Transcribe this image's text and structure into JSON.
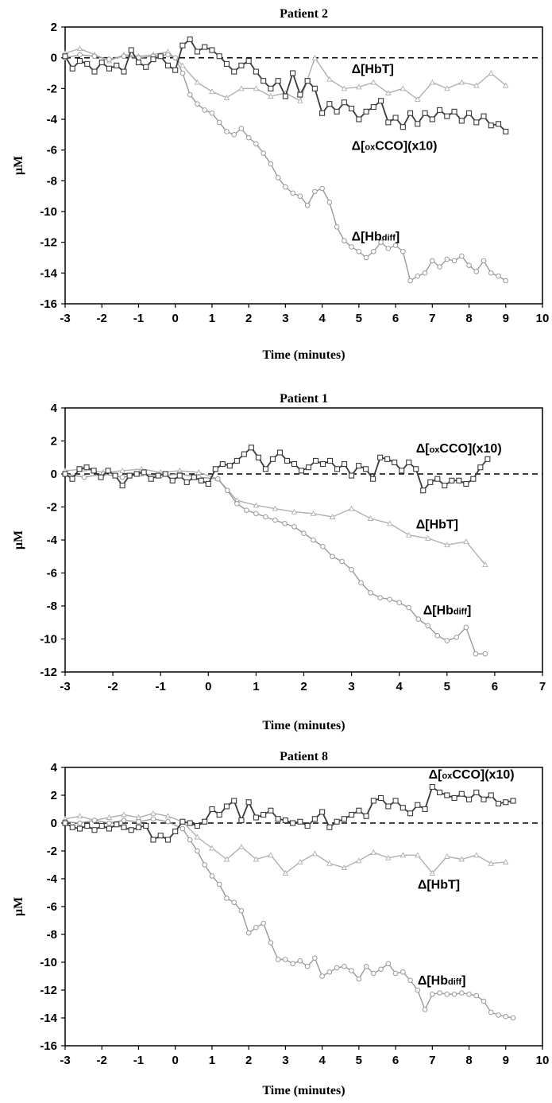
{
  "chart_data": [
    {
      "type": "line",
      "title": "Patient 2",
      "xlabel": "Time (minutes)",
      "ylabel": "µM",
      "xlim": [
        -3,
        10
      ],
      "ylim": [
        -16,
        2
      ],
      "xticks": [
        "-3",
        "-2",
        "-1",
        "0",
        "1",
        "2",
        "3",
        "4",
        "5",
        "6",
        "7",
        "8",
        "9",
        "10"
      ],
      "yticks": [
        "2",
        "0",
        "-2",
        "-4",
        "-6",
        "-8",
        "-10",
        "-12",
        "-14",
        "-16"
      ],
      "baseline": 0,
      "series": [
        {
          "name": "Δ[oxCCO](x10)",
          "color": "#3a3a3a",
          "marker": "square",
          "x": [
            -3,
            -2.8,
            -2.6,
            -2.4,
            -2.2,
            -2,
            -1.8,
            -1.6,
            -1.4,
            -1.2,
            -1,
            -0.8,
            -0.6,
            -0.4,
            -0.2,
            0,
            0.2,
            0.4,
            0.6,
            0.8,
            1,
            1.2,
            1.4,
            1.6,
            1.8,
            2,
            2.2,
            2.4,
            2.6,
            2.8,
            3,
            3.2,
            3.4,
            3.6,
            3.8,
            4,
            4.2,
            4.4,
            4.6,
            4.8,
            5,
            5.2,
            5.4,
            5.6,
            5.8,
            6,
            6.2,
            6.4,
            6.6,
            6.8,
            7,
            7.2,
            7.4,
            7.6,
            7.8,
            8,
            8.2,
            8.4,
            8.6,
            8.8,
            9
          ],
          "y": [
            0.1,
            -0.7,
            -0.2,
            -0.4,
            -0.9,
            -0.3,
            -0.7,
            -0.5,
            -0.9,
            0.5,
            -0.3,
            -0.6,
            -0.1,
            0.1,
            -0.5,
            -0.8,
            0.8,
            1.2,
            0.4,
            0.7,
            0.5,
            0.1,
            -0.4,
            -0.9,
            -0.5,
            -0.2,
            -0.9,
            -1.5,
            -2.0,
            -1.5,
            -2.5,
            -1.0,
            -2.4,
            -1.5,
            -2.0,
            -3.6,
            -3.0,
            -3.5,
            -2.9,
            -3.3,
            -4.0,
            -3.5,
            -3.2,
            -2.8,
            -4.2,
            -3.9,
            -4.5,
            -3.6,
            -4.3,
            -3.6,
            -4.0,
            -3.4,
            -3.8,
            -3.5,
            -4.1,
            -3.6,
            -4.2,
            -3.8,
            -4.4,
            -4.3,
            -4.8
          ]
        },
        {
          "name": "Δ[HbT]",
          "color": "#b0b0b0",
          "marker": "triangle",
          "x": [
            -3,
            -2.6,
            -2.2,
            -1.8,
            -1.4,
            -1,
            -0.6,
            -0.2,
            0.2,
            0.6,
            1,
            1.4,
            1.8,
            2.2,
            2.6,
            3,
            3.4,
            3.8,
            4.2,
            4.6,
            5,
            5.4,
            5.8,
            6.2,
            6.6,
            7,
            7.4,
            7.8,
            8.2,
            8.6,
            9
          ],
          "y": [
            0.3,
            0.6,
            0.2,
            -0.2,
            0.2,
            0.1,
            0.2,
            0.4,
            -0.5,
            -1.6,
            -2.2,
            -2.6,
            -2.0,
            -2.0,
            -2.5,
            -2.3,
            -2.8,
            0,
            -1.4,
            -2.0,
            -1.9,
            -1.6,
            -2.3,
            -2.0,
            -2.7,
            -1.6,
            -2.0,
            -1.6,
            -1.8,
            -1.0,
            -1.8
          ]
        },
        {
          "name": "Δ[Hbdiff]",
          "color": "#9a9a9a",
          "marker": "circle",
          "x": [
            -3,
            -2.6,
            -2.2,
            -1.8,
            -1.4,
            -1,
            -0.6,
            -0.2,
            0,
            0.2,
            0.4,
            0.6,
            0.8,
            1,
            1.2,
            1.4,
            1.6,
            1.8,
            2,
            2.2,
            2.4,
            2.6,
            2.8,
            3,
            3.2,
            3.4,
            3.6,
            3.8,
            4,
            4.2,
            4.4,
            4.6,
            4.8,
            5,
            5.2,
            5.4,
            5.6,
            5.8,
            6,
            6.2,
            6.4,
            6.6,
            6.8,
            7,
            7.2,
            7.4,
            7.6,
            7.8,
            8,
            8.2,
            8.4,
            8.6,
            8.8,
            9
          ],
          "y": [
            0,
            0.2,
            0.1,
            -0.1,
            0.1,
            0,
            0.1,
            0.2,
            0,
            -1.0,
            -2.4,
            -3.0,
            -3.4,
            -3.6,
            -4.2,
            -4.8,
            -5.0,
            -4.6,
            -5.2,
            -5.6,
            -6.2,
            -6.9,
            -7.8,
            -8.4,
            -8.8,
            -9.0,
            -9.6,
            -8.7,
            -8.5,
            -9.4,
            -11.0,
            -11.9,
            -12.3,
            -12.6,
            -13.0,
            -12.6,
            -12.0,
            -12.4,
            -12.2,
            -12.6,
            -14.5,
            -14.2,
            -14.0,
            -13.2,
            -13.6,
            -13.1,
            -13.2,
            -12.9,
            -13.5,
            -13.9,
            -13.2,
            -14.0,
            -14.2,
            -14.5
          ]
        }
      ],
      "annotations": [
        {
          "main": "Δ[HbT]",
          "sub": "",
          "tail": "",
          "at": [
            4.8,
            -1.0
          ]
        },
        {
          "main": "Δ[",
          "sub": "ox",
          "tail": "CCO](x10)",
          "at": [
            4.8,
            -6.0
          ]
        },
        {
          "main": "Δ[Hb",
          "sub": "diff",
          "tail": "]",
          "at": [
            4.8,
            -11.9
          ]
        }
      ]
    },
    {
      "type": "line",
      "title": "Patient 1",
      "xlabel": "Time (minutes)",
      "ylabel": "µM",
      "xlim": [
        -3,
        7
      ],
      "ylim": [
        -12,
        4
      ],
      "xticks": [
        "-3",
        "-2",
        "-1",
        "0",
        "1",
        "2",
        "3",
        "4",
        "5",
        "6",
        "7"
      ],
      "yticks": [
        "4",
        "2",
        "0",
        "-2",
        "-4",
        "-6",
        "-8",
        "-10",
        "-12"
      ],
      "baseline": 0,
      "series": [
        {
          "name": "Δ[oxCCO](x10)",
          "color": "#3a3a3a",
          "marker": "square",
          "x": [
            -3,
            -2.85,
            -2.7,
            -2.55,
            -2.4,
            -2.25,
            -2.1,
            -1.95,
            -1.8,
            -1.65,
            -1.5,
            -1.35,
            -1.2,
            -1.05,
            -0.9,
            -0.75,
            -0.6,
            -0.45,
            -0.3,
            -0.15,
            0,
            0.15,
            0.3,
            0.45,
            0.6,
            0.75,
            0.9,
            1.05,
            1.2,
            1.35,
            1.5,
            1.65,
            1.8,
            1.95,
            2.1,
            2.25,
            2.4,
            2.55,
            2.7,
            2.85,
            3,
            3.15,
            3.3,
            3.45,
            3.6,
            3.75,
            3.9,
            4.05,
            4.2,
            4.35,
            4.5,
            4.65,
            4.8,
            4.95,
            5.1,
            5.25,
            5.4,
            5.55,
            5.7,
            5.85
          ],
          "y": [
            0,
            -0.3,
            0.3,
            0.4,
            0.2,
            -0.2,
            0.2,
            -0.1,
            -0.7,
            -0.1,
            0.0,
            0.1,
            -0.3,
            -0.1,
            0.0,
            -0.4,
            -0.1,
            -0.5,
            -0.2,
            -0.4,
            -0.6,
            0.3,
            0.6,
            0.5,
            0.8,
            1.2,
            1.6,
            1.0,
            0.3,
            0.9,
            1.3,
            0.8,
            0.6,
            0.2,
            0.4,
            0.8,
            0.6,
            0.8,
            0.3,
            0.6,
            -0.1,
            0.5,
            0.3,
            -0.3,
            1.0,
            0.9,
            0.7,
            0.2,
            0.7,
            0.3,
            -1.0,
            -0.5,
            -0.3,
            -0.7,
            -0.4,
            -0.4,
            -0.6,
            -0.3,
            0.4,
            0.9
          ]
        },
        {
          "name": "Δ[HbT]",
          "color": "#b0b0b0",
          "marker": "triangle",
          "x": [
            -3,
            -2.6,
            -2.2,
            -1.8,
            -1.4,
            -1,
            -0.6,
            -0.2,
            0.2,
            0.6,
            1,
            1.4,
            1.8,
            2.2,
            2.6,
            3,
            3.4,
            3.8,
            4.2,
            4.6,
            5,
            5.4,
            5.8
          ],
          "y": [
            0.2,
            0.3,
            0.1,
            0.2,
            0.3,
            0.1,
            0.2,
            0.1,
            -0.3,
            -1.6,
            -1.9,
            -2.1,
            -2.3,
            -2.4,
            -2.6,
            -2.1,
            -2.7,
            -3.0,
            -3.7,
            -3.9,
            -4.3,
            -4.1,
            -5.5
          ]
        },
        {
          "name": "Δ[Hbdiff]",
          "color": "#9a9a9a",
          "marker": "circle",
          "x": [
            -3,
            -2.6,
            -2.2,
            -1.8,
            -1.4,
            -1,
            -0.6,
            -0.2,
            0.2,
            0.4,
            0.6,
            0.8,
            1,
            1.2,
            1.4,
            1.6,
            1.8,
            2,
            2.2,
            2.4,
            2.6,
            2.8,
            3,
            3.2,
            3.4,
            3.6,
            3.8,
            4,
            4.2,
            4.4,
            4.6,
            4.8,
            5,
            5.2,
            5.4,
            5.6,
            5.8
          ],
          "y": [
            0,
            -0.2,
            0,
            -0.2,
            0,
            -0.1,
            0,
            -0.2,
            -0.3,
            -1.0,
            -1.8,
            -2.2,
            -2.4,
            -2.6,
            -2.8,
            -3.0,
            -3.2,
            -3.6,
            -4.0,
            -4.4,
            -5.0,
            -5.3,
            -5.8,
            -6.6,
            -7.2,
            -7.5,
            -7.6,
            -7.8,
            -8.1,
            -8.8,
            -9.2,
            -9.8,
            -10.1,
            -9.9,
            -9.3,
            -10.9,
            -10.9
          ]
        }
      ],
      "annotations": [
        {
          "main": "Δ[",
          "sub": "ox",
          "tail": "CCO](x10)",
          "at": [
            4.35,
            1.3
          ]
        },
        {
          "main": "Δ[HbT]",
          "sub": "",
          "tail": "",
          "at": [
            4.35,
            -3.3
          ]
        },
        {
          "main": "Δ[Hb",
          "sub": "diff",
          "tail": "]",
          "at": [
            4.5,
            -8.5
          ]
        }
      ]
    },
    {
      "type": "line",
      "title": "Patient 8",
      "xlabel": "Time (minutes)",
      "ylabel": "µM",
      "xlim": [
        -3,
        10
      ],
      "ylim": [
        -16,
        4
      ],
      "xticks": [
        "-3",
        "-2",
        "-1",
        "0",
        "1",
        "2",
        "3",
        "4",
        "5",
        "6",
        "7",
        "8",
        "9",
        "10"
      ],
      "yticks": [
        "4",
        "2",
        "0",
        "-2",
        "-4",
        "-6",
        "-8",
        "-10",
        "-12",
        "-14",
        "-16"
      ],
      "baseline": 0,
      "series": [
        {
          "name": "Δ[oxCCO](x10)",
          "color": "#3a3a3a",
          "marker": "square",
          "x": [
            -3,
            -2.8,
            -2.6,
            -2.4,
            -2.2,
            -2,
            -1.8,
            -1.6,
            -1.4,
            -1.2,
            -1,
            -0.8,
            -0.6,
            -0.4,
            -0.2,
            0,
            0.2,
            0.4,
            0.6,
            0.8,
            1,
            1.2,
            1.4,
            1.6,
            1.8,
            2,
            2.2,
            2.4,
            2.6,
            2.8,
            3,
            3.2,
            3.4,
            3.6,
            3.8,
            4,
            4.2,
            4.4,
            4.6,
            4.8,
            5,
            5.2,
            5.4,
            5.6,
            5.8,
            6,
            6.2,
            6.4,
            6.6,
            6.8,
            7,
            7.2,
            7.4,
            7.6,
            7.8,
            8,
            8.2,
            8.4,
            8.6,
            8.8,
            9,
            9.2
          ],
          "y": [
            0,
            -0.3,
            -0.4,
            -0.2,
            -0.5,
            -0.2,
            -0.4,
            -0.1,
            -0.3,
            -0.5,
            -0.3,
            -0.2,
            -1.2,
            -0.9,
            -1.2,
            -0.6,
            0.1,
            0.0,
            -0.2,
            0.1,
            1.0,
            0.6,
            1.2,
            1.6,
            0.2,
            1.5,
            0.4,
            0.6,
            0.9,
            0.3,
            0.2,
            0.0,
            0.1,
            -0.2,
            0.3,
            0.8,
            -0.3,
            0.1,
            0.3,
            0.6,
            0.9,
            0.5,
            1.6,
            1.8,
            1.2,
            1.6,
            1.1,
            0.7,
            1.3,
            1.0,
            2.6,
            2.2,
            2.0,
            1.8,
            2.1,
            1.7,
            2.2,
            1.7,
            2.0,
            1.4,
            1.5,
            1.6
          ]
        },
        {
          "name": "Δ[HbT]",
          "color": "#b0b0b0",
          "marker": "triangle",
          "x": [
            -3,
            -2.6,
            -2.2,
            -1.8,
            -1.4,
            -1,
            -0.6,
            -0.2,
            0.2,
            0.6,
            1,
            1.4,
            1.8,
            2.2,
            2.6,
            3,
            3.4,
            3.8,
            4.2,
            4.6,
            5,
            5.4,
            5.8,
            6.2,
            6.6,
            7,
            7.4,
            7.8,
            8.2,
            8.6,
            9
          ],
          "y": [
            0.3,
            0.5,
            0.2,
            0.4,
            0.6,
            0.4,
            0.7,
            0.5,
            0.1,
            -1.0,
            -1.8,
            -2.6,
            -1.7,
            -2.6,
            -2.3,
            -3.6,
            -2.8,
            -2.2,
            -2.9,
            -3.2,
            -2.7,
            -2.1,
            -2.5,
            -2.3,
            -2.3,
            -3.6,
            -2.4,
            -2.6,
            -2.3,
            -2.9,
            -2.8
          ]
        },
        {
          "name": "Δ[Hbdiff]",
          "color": "#9a9a9a",
          "marker": "circle",
          "x": [
            -3,
            -2.6,
            -2.2,
            -1.8,
            -1.4,
            -1,
            -0.6,
            -0.2,
            0.2,
            0.4,
            0.6,
            0.8,
            1,
            1.2,
            1.4,
            1.6,
            1.8,
            2,
            2.2,
            2.4,
            2.6,
            2.8,
            3,
            3.2,
            3.4,
            3.6,
            3.8,
            4,
            4.2,
            4.4,
            4.6,
            4.8,
            5,
            5.2,
            5.4,
            5.6,
            5.8,
            6,
            6.2,
            6.4,
            6.6,
            6.8,
            7,
            7.2,
            7.4,
            7.6,
            7.8,
            8,
            8.2,
            8.4,
            8.6,
            8.8,
            9,
            9.2
          ],
          "y": [
            0.1,
            0,
            0.2,
            0,
            0.2,
            0.1,
            0.3,
            0.1,
            -0.4,
            -1.2,
            -2.0,
            -3.0,
            -3.8,
            -4.4,
            -5.4,
            -5.7,
            -6.3,
            -7.9,
            -7.5,
            -7.2,
            -8.6,
            -9.8,
            -9.8,
            -10.1,
            -9.9,
            -10.3,
            -9.7,
            -11.0,
            -10.7,
            -10.4,
            -10.3,
            -10.6,
            -11.2,
            -10.3,
            -10.8,
            -10.5,
            -10.1,
            -10.8,
            -10.7,
            -11.3,
            -12.0,
            -13.4,
            -12.3,
            -12.2,
            -12.3,
            -12.3,
            -12.2,
            -12.3,
            -12.4,
            -12.8,
            -13.6,
            -13.8,
            -13.9,
            -14.0
          ]
        }
      ],
      "annotations": [
        {
          "main": "Δ[",
          "sub": "ox",
          "tail": "CCO](x10)",
          "at": [
            6.9,
            3.2
          ]
        },
        {
          "main": "Δ[HbT]",
          "sub": "",
          "tail": "",
          "at": [
            6.6,
            -4.7
          ]
        },
        {
          "main": "Δ[Hb",
          "sub": "diff",
          "tail": "]",
          "at": [
            6.6,
            -11.6
          ]
        }
      ]
    }
  ]
}
